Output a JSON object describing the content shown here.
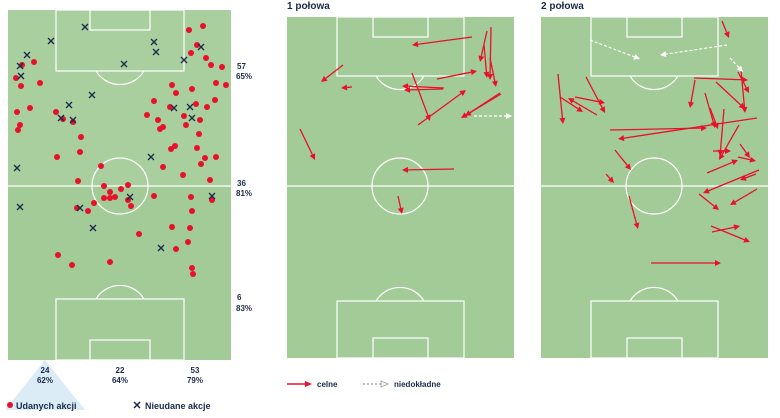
{
  "chart_data": [
    {
      "type": "scatter",
      "pitch": "left",
      "success_points": [
        [
          16,
          78
        ],
        [
          22,
          65
        ],
        [
          34,
          62
        ],
        [
          40,
          83
        ],
        [
          21,
          86
        ],
        [
          30,
          108
        ],
        [
          17,
          112
        ],
        [
          18,
          130
        ],
        [
          20,
          125
        ],
        [
          56,
          112
        ],
        [
          73,
          122
        ],
        [
          81,
          137
        ],
        [
          63,
          119
        ],
        [
          57,
          157
        ],
        [
          80,
          152
        ],
        [
          78,
          181
        ],
        [
          101,
          166
        ],
        [
          104,
          186
        ],
        [
          110,
          192
        ],
        [
          94,
          203
        ],
        [
          88,
          211
        ],
        [
          104,
          198
        ],
        [
          110,
          198
        ],
        [
          121,
          189
        ],
        [
          128,
          185
        ],
        [
          128,
          200
        ],
        [
          115,
          197
        ],
        [
          147,
          115
        ],
        [
          154,
          101
        ],
        [
          158,
          120
        ],
        [
          160,
          129
        ],
        [
          172,
          85
        ],
        [
          170,
          107
        ],
        [
          176,
          93
        ],
        [
          184,
          116
        ],
        [
          186,
          125
        ],
        [
          175,
          146
        ],
        [
          171,
          149
        ],
        [
          163,
          127
        ],
        [
          192,
          89
        ],
        [
          189,
          30
        ],
        [
          203,
          26
        ],
        [
          197,
          45
        ],
        [
          206,
          58
        ],
        [
          191,
          53
        ],
        [
          211,
          65
        ],
        [
          215,
          100
        ],
        [
          216,
          83
        ],
        [
          207,
          107
        ],
        [
          199,
          134
        ],
        [
          200,
          120
        ],
        [
          196,
          104
        ],
        [
          197,
          148
        ],
        [
          205,
          158
        ],
        [
          201,
          164
        ],
        [
          216,
          157
        ],
        [
          210,
          180
        ],
        [
          212,
          200
        ],
        [
          192,
          211
        ],
        [
          190,
          228
        ],
        [
          188,
          242
        ],
        [
          176,
          249
        ],
        [
          172,
          227
        ],
        [
          139,
          234
        ],
        [
          131,
          206
        ],
        [
          154,
          196
        ],
        [
          163,
          167
        ],
        [
          183,
          175
        ],
        [
          192,
          268
        ],
        [
          193,
          274
        ],
        [
          110,
          262
        ],
        [
          72,
          265
        ],
        [
          58,
          255
        ],
        [
          77,
          208
        ],
        [
          191,
          197
        ],
        [
          226,
          85
        ],
        [
          222,
          67
        ]
      ],
      "fail_points": [
        [
          85,
          27
        ],
        [
          51,
          41
        ],
        [
          27,
          55
        ],
        [
          21,
          76
        ],
        [
          20,
          66
        ],
        [
          154,
          42
        ],
        [
          156,
          52
        ],
        [
          124,
          64
        ],
        [
          184,
          60
        ],
        [
          201,
          47
        ],
        [
          92,
          95
        ],
        [
          69,
          105
        ],
        [
          61,
          118
        ],
        [
          73,
          120
        ],
        [
          174,
          108
        ],
        [
          190,
          107
        ],
        [
          192,
          118
        ],
        [
          151,
          157
        ],
        [
          17,
          168
        ],
        [
          20,
          207
        ],
        [
          80,
          208
        ],
        [
          93,
          228
        ],
        [
          130,
          197
        ],
        [
          212,
          196
        ],
        [
          161,
          248
        ]
      ],
      "row_labels": [
        {
          "count": "57",
          "pct": "65%"
        },
        {
          "count": "36",
          "pct": "81%"
        },
        {
          "count": "6",
          "pct": "83%"
        }
      ],
      "col_labels": [
        {
          "count": "24",
          "pct": "62%"
        },
        {
          "count": "22",
          "pct": "64%"
        },
        {
          "count": "53",
          "pct": "79%"
        }
      ],
      "legend": {
        "success": "Udanych akcji",
        "fail": "Nieudane akcje"
      }
    },
    {
      "type": "arrows",
      "title": "1 połowa",
      "arrows_red": [
        [
          472,
          37,
          412,
          45
        ],
        [
          487,
          31,
          480,
          62
        ],
        [
          484,
          45,
          487,
          78
        ],
        [
          490,
          58,
          496,
          87
        ],
        [
          491,
          27,
          490,
          80
        ],
        [
          437,
          79,
          477,
          71
        ],
        [
          444,
          88,
          402,
          86
        ],
        [
          412,
          73,
          430,
          121
        ],
        [
          418,
          125,
          466,
          90
        ],
        [
          501,
          94,
          461,
          118
        ],
        [
          500,
          93,
          465,
          116
        ],
        [
          443,
          89,
          404,
          90
        ],
        [
          300,
          129,
          315,
          160
        ],
        [
          398,
          196,
          402,
          214
        ],
        [
          454,
          169,
          402,
          170
        ],
        [
          343,
          65,
          321,
          82
        ],
        [
          352,
          87,
          341,
          88
        ]
      ],
      "arrows_white": [
        [
          474,
          116,
          512,
          116
        ]
      ],
      "legend": {
        "red": "celne",
        "white": "niedokładne"
      }
    },
    {
      "type": "arrows",
      "title": "2 połowa",
      "arrows_red": [
        [
          722,
          21,
          729,
          38
        ],
        [
          694,
          78,
          748,
          80
        ],
        [
          695,
          80,
          690,
          108
        ],
        [
          705,
          93,
          715,
          128
        ],
        [
          710,
          108,
          718,
          129
        ],
        [
          716,
          82,
          745,
          109
        ],
        [
          738,
          72,
          749,
          93
        ],
        [
          741,
          70,
          745,
          113
        ],
        [
          757,
          118,
          618,
          139
        ],
        [
          610,
          130,
          707,
          128
        ],
        [
          558,
          74,
          563,
          124
        ],
        [
          575,
          97,
          605,
          103
        ],
        [
          560,
          97,
          583,
          112
        ],
        [
          597,
          115,
          568,
          98
        ],
        [
          586,
          77,
          605,
          113
        ],
        [
          615,
          150,
          631,
          170
        ],
        [
          606,
          174,
          614,
          183
        ],
        [
          707,
          173,
          738,
          160
        ],
        [
          713,
          151,
          731,
          151
        ],
        [
          740,
          144,
          750,
          158
        ],
        [
          738,
          157,
          756,
          161
        ],
        [
          759,
          170,
          703,
          193
        ],
        [
          756,
          174,
          740,
          180
        ],
        [
          757,
          189,
          730,
          205
        ],
        [
          739,
          125,
          719,
          160
        ],
        [
          724,
          109,
          720,
          156
        ],
        [
          699,
          194,
          719,
          210
        ],
        [
          711,
          226,
          750,
          242
        ],
        [
          712,
          232,
          740,
          226
        ],
        [
          629,
          196,
          638,
          229
        ],
        [
          651,
          263,
          721,
          263
        ]
      ],
      "arrows_white": [
        [
          590,
          40,
          640,
          59
        ],
        [
          727,
          45,
          660,
          55
        ],
        [
          730,
          58,
          743,
          72
        ]
      ]
    }
  ]
}
